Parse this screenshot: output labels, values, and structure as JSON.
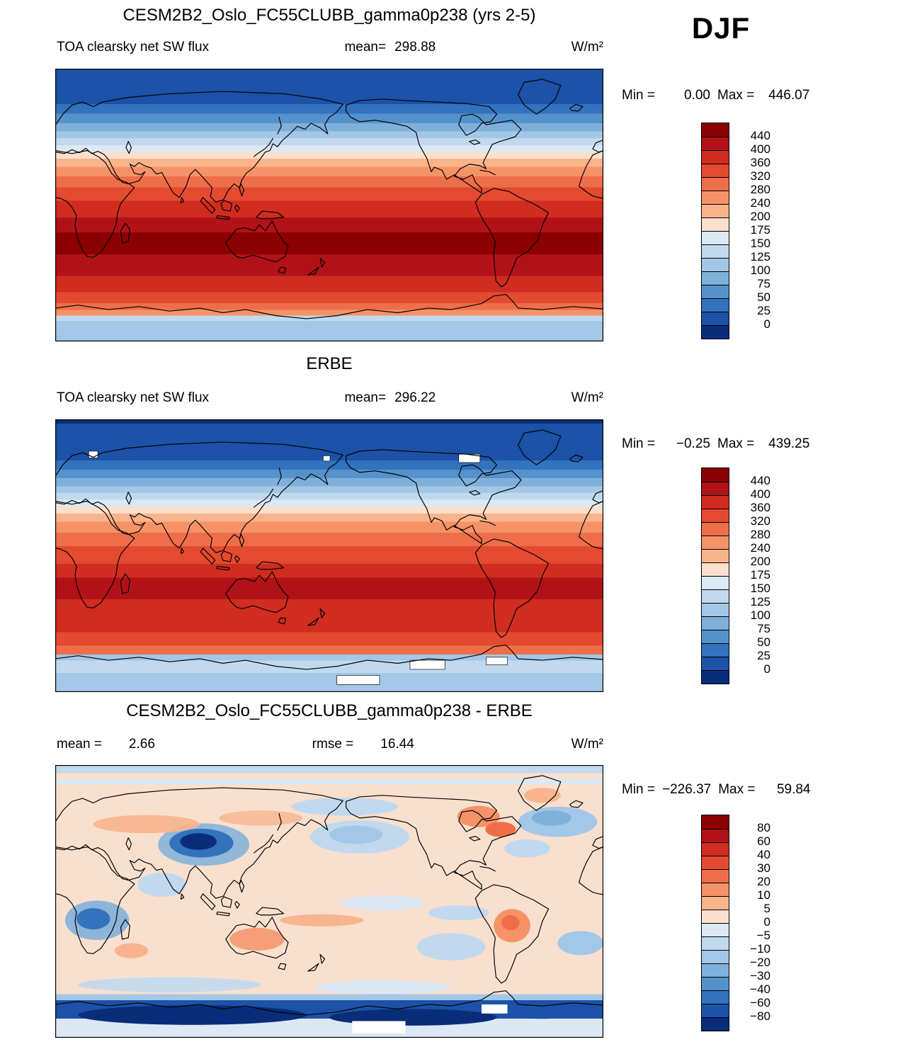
{
  "header": {
    "season": "DJF"
  },
  "panels": [
    {
      "title": "CESM2B2_Oslo_FC55CLUBB_gamma0p238 (yrs 2-5)",
      "var_label": "TOA clearsky net SW flux",
      "mean_label": "mean=",
      "mean_value": "298.88",
      "units": "W/m²",
      "min_label": "Min =",
      "min_value": "0.00",
      "max_label": "Max =",
      "max_value": "446.07"
    },
    {
      "title": "ERBE",
      "var_label": "TOA clearsky net SW flux",
      "mean_label": "mean=",
      "mean_value": "296.22",
      "units": "W/m²",
      "min_label": "Min =",
      "min_value": "−0.25",
      "max_label": "Max =",
      "max_value": "439.25"
    },
    {
      "title": "CESM2B2_Oslo_FC55CLUBB_gamma0p238 - ERBE",
      "mean_label": "mean =",
      "mean_value": "2.66",
      "rmse_label": "rmse =",
      "rmse_value": "16.44",
      "units": "W/m²",
      "min_label": "Min =",
      "min_value": "−226.37",
      "max_label": "Max =",
      "max_value": "59.84"
    }
  ],
  "chart_data": [
    {
      "type": "heatmap",
      "panel": "model",
      "title": "CESM2B2_Oslo_FC55CLUBB_gamma0p238 (yrs 2-5)",
      "variable": "TOA clearsky net SW flux",
      "season": "DJF",
      "units": "W/m²",
      "mean": 298.88,
      "min": 0.0,
      "max": 446.07,
      "colorbar": {
        "levels": [
          440,
          400,
          360,
          320,
          280,
          240,
          200,
          175,
          150,
          125,
          100,
          75,
          50,
          25,
          0
        ],
        "labels": [
          "440",
          "400",
          "360",
          "320",
          "280",
          "240",
          "200",
          "175",
          "150",
          "125",
          "100",
          "75",
          "50",
          "25",
          "0"
        ],
        "colors": [
          "#8b0000",
          "#b11218",
          "#d02c20",
          "#e34a30",
          "#ef6e4a",
          "#f69268",
          "#fab48c",
          "#fbe0cd",
          "#dce9f5",
          "#c1d9ee",
          "#a3c7e6",
          "#7fb0da",
          "#5592cc",
          "#3372bd",
          "#1c52a8",
          "#0a2d7a"
        ]
      },
      "latitude_bands": [
        [
          0.13,
          "#1c52a8"
        ],
        [
          0.165,
          "#3372bd"
        ],
        [
          0.2,
          "#5592cc"
        ],
        [
          0.23,
          "#7fb0da"
        ],
        [
          0.255,
          "#a3c7e6"
        ],
        [
          0.28,
          "#c1d9ee"
        ],
        [
          0.305,
          "#dce9f5"
        ],
        [
          0.33,
          "#fbe0cd"
        ],
        [
          0.36,
          "#fab48c"
        ],
        [
          0.395,
          "#f69268"
        ],
        [
          0.435,
          "#ef6e4a"
        ],
        [
          0.485,
          "#e34a30"
        ],
        [
          0.545,
          "#d02c20"
        ],
        [
          0.6,
          "#b11218"
        ],
        [
          0.68,
          "#8b0000"
        ],
        [
          0.76,
          "#b11218"
        ],
        [
          0.82,
          "#d02c20"
        ],
        [
          0.86,
          "#e34a30"
        ],
        [
          0.885,
          "#ef6e4a"
        ],
        [
          0.905,
          "#f69268"
        ],
        [
          0.925,
          "#c1d9ee"
        ],
        [
          1.0,
          "#a3c7e6"
        ]
      ]
    },
    {
      "type": "heatmap",
      "panel": "observations",
      "title": "ERBE",
      "variable": "TOA clearsky net SW flux",
      "season": "DJF",
      "units": "W/m²",
      "mean": 296.22,
      "min": -0.25,
      "max": 439.25,
      "colorbar": {
        "levels": [
          440,
          400,
          360,
          320,
          280,
          240,
          200,
          175,
          150,
          125,
          100,
          75,
          50,
          25,
          0
        ],
        "labels": [
          "440",
          "400",
          "360",
          "320",
          "280",
          "240",
          "200",
          "175",
          "150",
          "125",
          "100",
          "75",
          "50",
          "25",
          "0"
        ],
        "colors": [
          "#8b0000",
          "#b11218",
          "#d02c20",
          "#e34a30",
          "#ef6e4a",
          "#f69268",
          "#fab48c",
          "#fbe0cd",
          "#dce9f5",
          "#c1d9ee",
          "#a3c7e6",
          "#7fb0da",
          "#5592cc",
          "#3372bd",
          "#1c52a8",
          "#0a2d7a"
        ]
      },
      "latitude_bands": [
        [
          0.015,
          "#0a2d7a"
        ],
        [
          0.15,
          "#1c52a8"
        ],
        [
          0.185,
          "#3372bd"
        ],
        [
          0.215,
          "#5592cc"
        ],
        [
          0.245,
          "#7fb0da"
        ],
        [
          0.27,
          "#a3c7e6"
        ],
        [
          0.295,
          "#c1d9ee"
        ],
        [
          0.32,
          "#dce9f5"
        ],
        [
          0.345,
          "#fbe0cd"
        ],
        [
          0.375,
          "#fab48c"
        ],
        [
          0.415,
          "#f69268"
        ],
        [
          0.465,
          "#ef6e4a"
        ],
        [
          0.53,
          "#e34a30"
        ],
        [
          0.58,
          "#d02c20"
        ],
        [
          0.66,
          "#b11218"
        ],
        [
          0.78,
          "#d02c20"
        ],
        [
          0.83,
          "#e34a30"
        ],
        [
          0.862,
          "#ef6e4a"
        ],
        [
          0.885,
          "#a3c7e6"
        ],
        [
          0.93,
          "#c1d9ee"
        ],
        [
          1.0,
          "#a3c7e6"
        ]
      ]
    },
    {
      "type": "heatmap",
      "panel": "difference",
      "title": "CESM2B2_Oslo_FC55CLUBB_gamma0p238 - ERBE",
      "statistic": "model minus observations",
      "season": "DJF",
      "units": "W/m²",
      "mean": 2.66,
      "rmse": 16.44,
      "min": -226.37,
      "max": 59.84,
      "colorbar": {
        "levels": [
          80,
          60,
          40,
          30,
          20,
          10,
          5,
          0,
          -5,
          -10,
          -20,
          -30,
          -40,
          -60,
          -80
        ],
        "labels": [
          "80",
          "60",
          "40",
          "30",
          "20",
          "10",
          "5",
          "0",
          "−5",
          "−10",
          "−20",
          "−30",
          "−40",
          "−60",
          "−80"
        ],
        "colors": [
          "#8b0000",
          "#b11218",
          "#d02c20",
          "#e34a30",
          "#ef6e4a",
          "#f69268",
          "#fab48c",
          "#fbe0cd",
          "#dce9f5",
          "#c1d9ee",
          "#a3c7e6",
          "#7fb0da",
          "#5592cc",
          "#3372bd",
          "#1c52a8",
          "#0a2d7a"
        ]
      },
      "latitude_bands": [
        [
          0.03,
          "#c1d9ee"
        ],
        [
          0.05,
          "#fbe0cd"
        ],
        [
          0.07,
          "#dce9f5"
        ],
        [
          0.84,
          "#f9e0ce"
        ],
        [
          0.862,
          "#a3c7e6"
        ],
        [
          0.93,
          "#1c52a8"
        ],
        [
          1.0,
          "#dce9f5"
        ]
      ]
    }
  ]
}
